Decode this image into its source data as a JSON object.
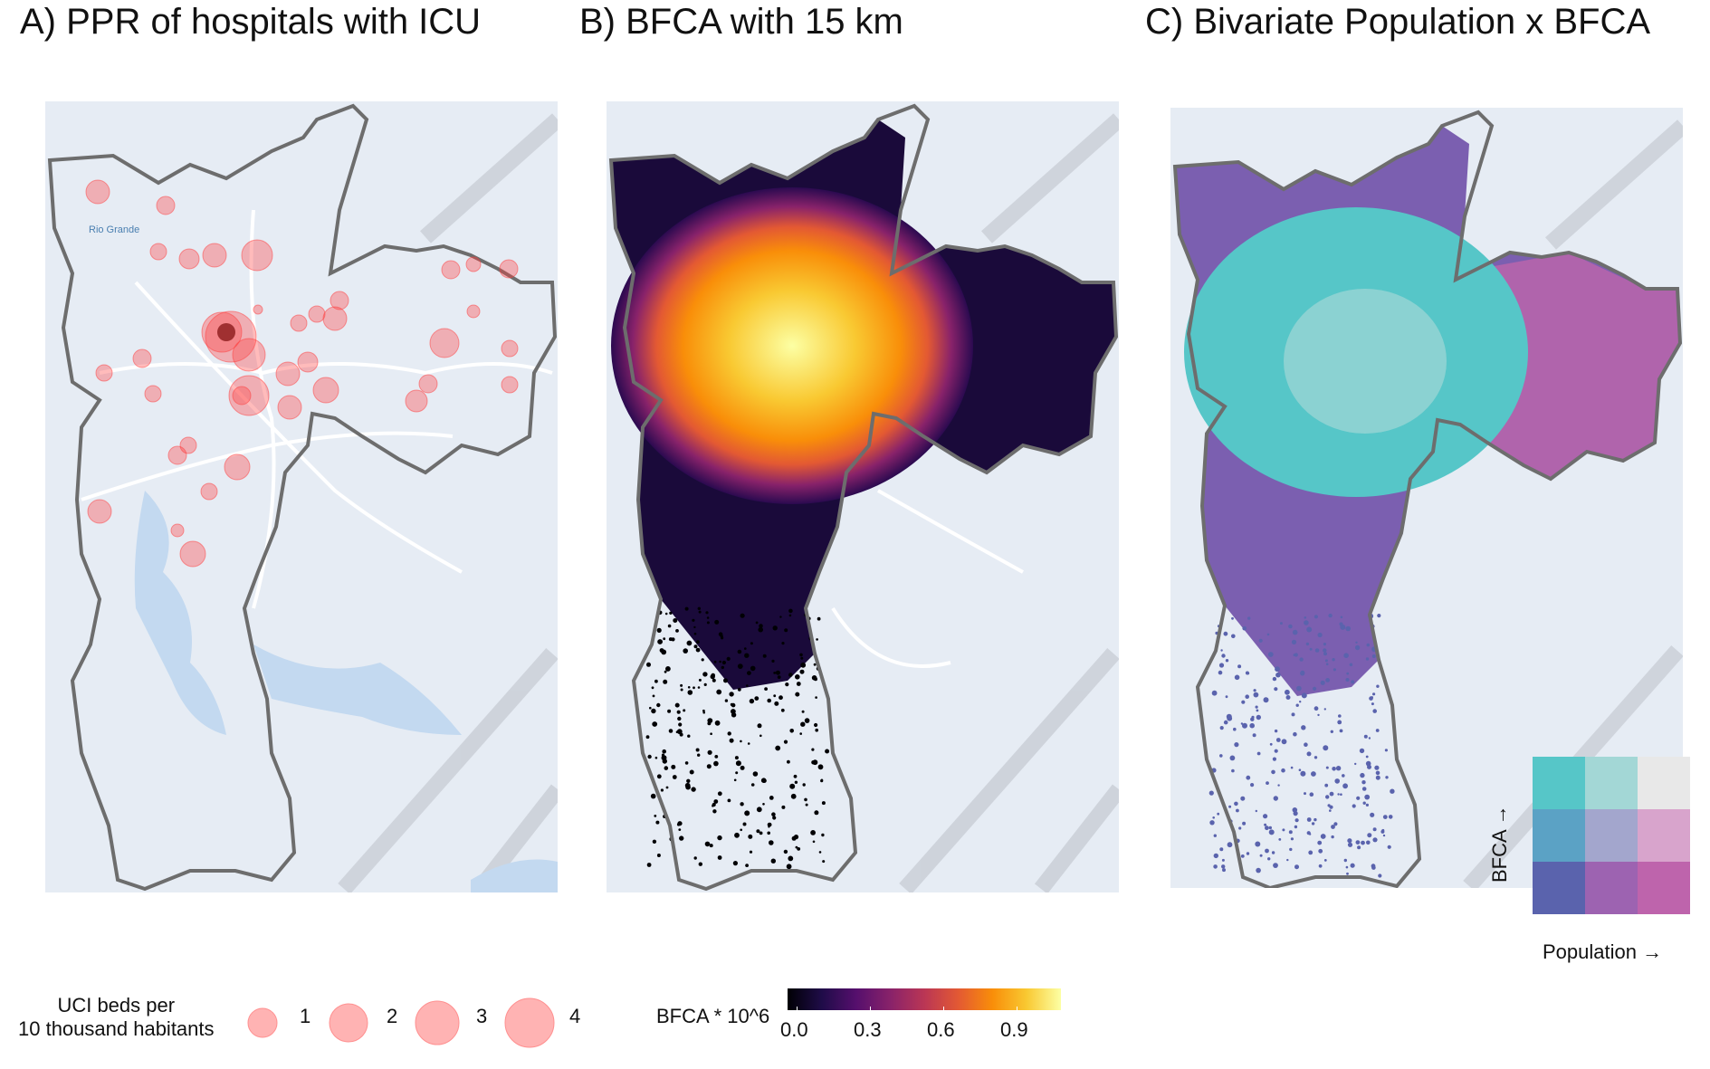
{
  "panels": {
    "a": {
      "title": "A) PPR of hospitals with ICU",
      "place_label": "Rio Grande"
    },
    "b": {
      "title": "B) BFCA with 15 km"
    },
    "c": {
      "title": "C) Bivariate Population x BFCA"
    }
  },
  "colors": {
    "background_map": "#e6ecf4",
    "roads": "#ffffff",
    "water": "#c3d9f0",
    "relief": "#c9ced6",
    "boundary": "#6d6d6d",
    "bubble": "#ff3b3b",
    "bfca_scale": [
      "#000004",
      "#1f0c48",
      "#550f6d",
      "#88226a",
      "#ba3655",
      "#e35933",
      "#f98e09",
      "#f9c932",
      "#fcffa4"
    ],
    "bivariate": [
      [
        "#56c6c8",
        "#a3d7d6",
        "#e8e8e8"
      ],
      [
        "#5ba2c5",
        "#a3a6cd",
        "#d8a4cc"
      ],
      [
        "#5a63ad",
        "#9d63b1",
        "#be64ac"
      ]
    ]
  },
  "size_legend": {
    "title_line1": "UCI beds per",
    "title_line2": "10 thousand habitants",
    "items": [
      {
        "label": "1",
        "value": 1
      },
      {
        "label": "2",
        "value": 2
      },
      {
        "label": "3",
        "value": 3
      },
      {
        "label": "4",
        "value": 4
      }
    ]
  },
  "color_legend": {
    "title": "BFCA * 10^6",
    "ticks": [
      "0.0",
      "0.3",
      "0.6",
      "0.9"
    ]
  },
  "bivariate_legend": {
    "y_axis_label": "BFCA →",
    "x_axis_label": "Population →"
  }
}
